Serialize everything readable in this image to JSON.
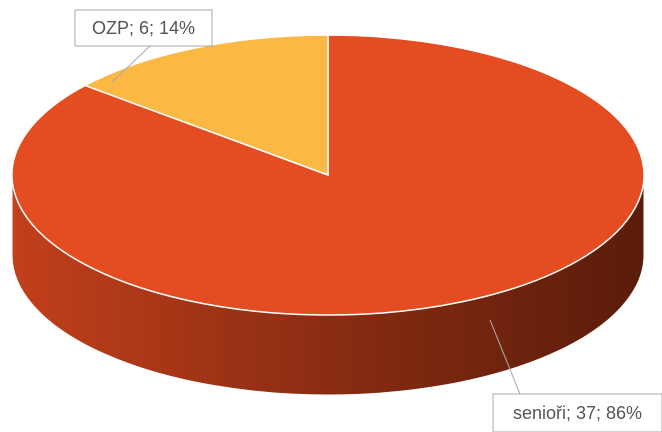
{
  "chart_data": {
    "type": "pie",
    "categories": [
      "senioři",
      "OZP"
    ],
    "values": [
      37,
      6
    ],
    "value_labels": [
      "senioři; 37; 86%",
      "OZP; 6; 14%"
    ],
    "colors": [
      "#e44d21",
      "#fbb843"
    ]
  }
}
